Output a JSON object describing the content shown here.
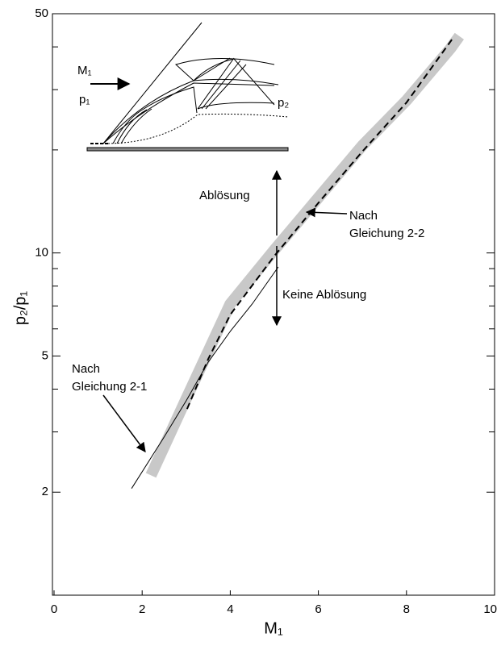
{
  "chart_data": {
    "type": "line",
    "xlabel": "M₁",
    "ylabel": "p₂/p₁",
    "xlim": [
      0,
      10
    ],
    "xticks": [
      0,
      2,
      4,
      6,
      8,
      10
    ],
    "ylim": [
      1,
      50
    ],
    "yticks": [
      2,
      5,
      10,
      50
    ],
    "yminorticks": [
      3,
      4,
      6,
      7,
      8,
      9,
      20,
      30,
      40
    ],
    "log_y": true,
    "series": [
      {
        "color": "#c8c8c8",
        "line_width": 14,
        "dash": false,
        "x": [
          2.2,
          3,
          4,
          5,
          6,
          7,
          8,
          9,
          9.2
        ],
        "values": [
          2.24,
          3.75,
          7.1,
          10.2,
          14.5,
          20.6,
          27.9,
          39.6,
          43
        ]
      },
      {
        "color": "#000000",
        "line_width": 2,
        "dash": true,
        "x": [
          3.02,
          3.5,
          4,
          5,
          6,
          7,
          8,
          9.03
        ],
        "values": [
          3.5,
          4.9,
          6.6,
          9.8,
          14,
          19.8,
          27.5,
          42
        ]
      },
      {
        "color": "#000000",
        "line_width": 1,
        "dash": false,
        "x": [
          1.76,
          2.5,
          3,
          3.5,
          4,
          4.5,
          5.09
        ],
        "values": [
          2.05,
          2.9,
          3.7,
          4.8,
          5.9,
          7.1,
          9.1
        ]
      }
    ],
    "annotations": {
      "eq1": [
        "Nach",
        "Gleichung 2-1"
      ],
      "eq2": [
        "Nach",
        "Gleichung 2-2"
      ],
      "separation": "Ablösung",
      "no_separation": "Keine Ablösung"
    },
    "inset": {
      "mach": "M₁",
      "p1": "p₁",
      "p2": "p₂"
    }
  }
}
